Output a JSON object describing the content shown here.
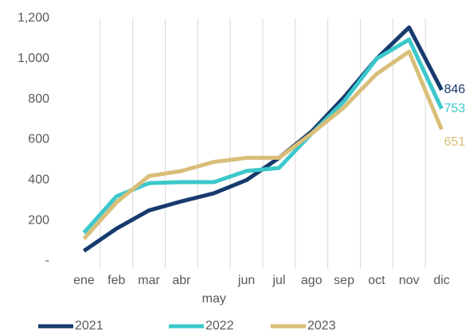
{
  "chart_data": {
    "type": "line",
    "categories": [
      "ene",
      "feb",
      "mar",
      "abr",
      "may",
      "jun",
      "jul",
      "ago",
      "sep",
      "oct",
      "nov",
      "dic"
    ],
    "series": [
      {
        "name": "2021",
        "color": "#173a6e",
        "values": [
          50,
          160,
          250,
          295,
          335,
          400,
          510,
          640,
          810,
          1000,
          1155,
          846
        ]
      },
      {
        "name": "2022",
        "color": "#3cc8cb",
        "values": [
          140,
          320,
          385,
          390,
          390,
          445,
          460,
          630,
          790,
          1000,
          1095,
          753
        ]
      },
      {
        "name": "2023",
        "color": "#d8be78",
        "values": [
          110,
          290,
          420,
          445,
          490,
          510,
          510,
          630,
          760,
          925,
          1035,
          651
        ]
      }
    ],
    "ylim": [
      0,
      1200
    ],
    "yticks": [
      {
        "value": 0,
        "label": "-"
      },
      200,
      400,
      600,
      800,
      {
        "value": 1000,
        "label": "1,000"
      },
      {
        "value": 1200,
        "label": "1,200"
      }
    ],
    "legend": "bottom"
  }
}
